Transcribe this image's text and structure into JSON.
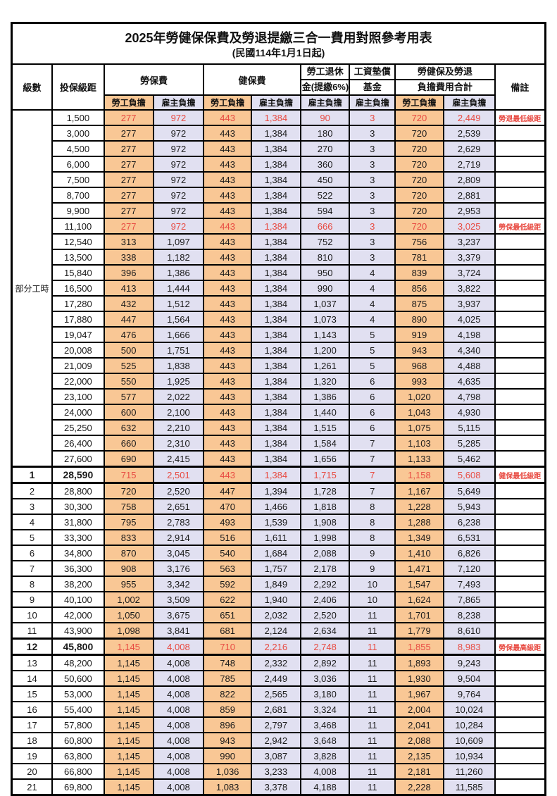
{
  "title": "2025年勞健保保費及勞退提繳三合一費用對照參考用表",
  "subtitle": "(民國114年1月1日起)",
  "colors": {
    "employee_column_bg": "#F9C795",
    "employer_column_bg": "#E1E0F1",
    "red_text": "#E84B42",
    "border": "#000000"
  },
  "header": {
    "level": "級數",
    "bracket": "投保級距",
    "labor_insurance": "勞保費",
    "health_insurance": "健保費",
    "pension_line1": "勞工退休",
    "pension_line2": "金(提繳6%)",
    "wage_fund_line1": "工資墊償",
    "wage_fund_line2": "基金",
    "total_line1": "勞健保及勞退",
    "total_line2": "負擔費用合計",
    "remark": "備註",
    "employee": "勞工負擔",
    "employer": "雇主負擔"
  },
  "part_time_label": "部分工時",
  "part_time_row_count": 23,
  "rows": [
    [
      "",
      "1,500",
      "277",
      "972",
      "443",
      "1,384",
      "90",
      "3",
      "720",
      "2,449",
      "勞退最低級距",
      "red"
    ],
    [
      "",
      "3,000",
      "277",
      "972",
      "443",
      "1,384",
      "180",
      "3",
      "720",
      "2,539",
      "",
      ""
    ],
    [
      "",
      "4,500",
      "277",
      "972",
      "443",
      "1,384",
      "270",
      "3",
      "720",
      "2,629",
      "",
      ""
    ],
    [
      "",
      "6,000",
      "277",
      "972",
      "443",
      "1,384",
      "360",
      "3",
      "720",
      "2,719",
      "",
      ""
    ],
    [
      "",
      "7,500",
      "277",
      "972",
      "443",
      "1,384",
      "450",
      "3",
      "720",
      "2,809",
      "",
      ""
    ],
    [
      "",
      "8,700",
      "277",
      "972",
      "443",
      "1,384",
      "522",
      "3",
      "720",
      "2,881",
      "",
      ""
    ],
    [
      "",
      "9,900",
      "277",
      "972",
      "443",
      "1,384",
      "594",
      "3",
      "720",
      "2,953",
      "",
      ""
    ],
    [
      "",
      "11,100",
      "277",
      "972",
      "443",
      "1,384",
      "666",
      "3",
      "720",
      "3,025",
      "勞保最低級距",
      "red"
    ],
    [
      "",
      "12,540",
      "313",
      "1,097",
      "443",
      "1,384",
      "752",
      "3",
      "756",
      "3,237",
      "",
      ""
    ],
    [
      "",
      "13,500",
      "338",
      "1,182",
      "443",
      "1,384",
      "810",
      "3",
      "781",
      "3,379",
      "",
      ""
    ],
    [
      "",
      "15,840",
      "396",
      "1,386",
      "443",
      "1,384",
      "950",
      "4",
      "839",
      "3,724",
      "",
      ""
    ],
    [
      "",
      "16,500",
      "413",
      "1,444",
      "443",
      "1,384",
      "990",
      "4",
      "856",
      "3,822",
      "",
      ""
    ],
    [
      "",
      "17,280",
      "432",
      "1,512",
      "443",
      "1,384",
      "1,037",
      "4",
      "875",
      "3,937",
      "",
      ""
    ],
    [
      "",
      "17,880",
      "447",
      "1,564",
      "443",
      "1,384",
      "1,073",
      "4",
      "890",
      "4,025",
      "",
      ""
    ],
    [
      "",
      "19,047",
      "476",
      "1,666",
      "443",
      "1,384",
      "1,143",
      "5",
      "919",
      "4,198",
      "",
      ""
    ],
    [
      "",
      "20,008",
      "500",
      "1,751",
      "443",
      "1,384",
      "1,200",
      "5",
      "943",
      "4,340",
      "",
      ""
    ],
    [
      "",
      "21,009",
      "525",
      "1,838",
      "443",
      "1,384",
      "1,261",
      "5",
      "968",
      "4,488",
      "",
      ""
    ],
    [
      "",
      "22,000",
      "550",
      "1,925",
      "443",
      "1,384",
      "1,320",
      "6",
      "993",
      "4,635",
      "",
      ""
    ],
    [
      "",
      "23,100",
      "577",
      "2,022",
      "443",
      "1,384",
      "1,386",
      "6",
      "1,020",
      "4,798",
      "",
      ""
    ],
    [
      "",
      "24,000",
      "600",
      "2,100",
      "443",
      "1,384",
      "1,440",
      "6",
      "1,043",
      "4,930",
      "",
      ""
    ],
    [
      "",
      "25,250",
      "632",
      "2,210",
      "443",
      "1,384",
      "1,515",
      "6",
      "1,075",
      "5,115",
      "",
      ""
    ],
    [
      "",
      "26,400",
      "660",
      "2,310",
      "443",
      "1,384",
      "1,584",
      "7",
      "1,103",
      "5,285",
      "",
      ""
    ],
    [
      "",
      "27,600",
      "690",
      "2,415",
      "443",
      "1,384",
      "1,656",
      "7",
      "1,133",
      "5,462",
      "",
      ""
    ],
    [
      "1",
      "28,590",
      "715",
      "2,501",
      "443",
      "1,384",
      "1,715",
      "7",
      "1,158",
      "5,608",
      "健保最低級距",
      "red bold"
    ],
    [
      "2",
      "28,800",
      "720",
      "2,520",
      "447",
      "1,394",
      "1,728",
      "7",
      "1,167",
      "5,649",
      "",
      ""
    ],
    [
      "3",
      "30,300",
      "758",
      "2,651",
      "470",
      "1,466",
      "1,818",
      "8",
      "1,228",
      "5,943",
      "",
      ""
    ],
    [
      "4",
      "31,800",
      "795",
      "2,783",
      "493",
      "1,539",
      "1,908",
      "8",
      "1,288",
      "6,238",
      "",
      ""
    ],
    [
      "5",
      "33,300",
      "833",
      "2,914",
      "516",
      "1,611",
      "1,998",
      "8",
      "1,349",
      "6,531",
      "",
      ""
    ],
    [
      "6",
      "34,800",
      "870",
      "3,045",
      "540",
      "1,684",
      "2,088",
      "9",
      "1,410",
      "6,826",
      "",
      ""
    ],
    [
      "7",
      "36,300",
      "908",
      "3,176",
      "563",
      "1,757",
      "2,178",
      "9",
      "1,471",
      "7,120",
      "",
      ""
    ],
    [
      "8",
      "38,200",
      "955",
      "3,342",
      "592",
      "1,849",
      "2,292",
      "10",
      "1,547",
      "7,493",
      "",
      ""
    ],
    [
      "9",
      "40,100",
      "1,002",
      "3,509",
      "622",
      "1,940",
      "2,406",
      "10",
      "1,624",
      "7,865",
      "",
      ""
    ],
    [
      "10",
      "42,000",
      "1,050",
      "3,675",
      "651",
      "2,032",
      "2,520",
      "11",
      "1,701",
      "8,238",
      "",
      ""
    ],
    [
      "11",
      "43,900",
      "1,098",
      "3,841",
      "681",
      "2,124",
      "2,634",
      "11",
      "1,779",
      "8,610",
      "",
      ""
    ],
    [
      "12",
      "45,800",
      "1,145",
      "4,008",
      "710",
      "2,216",
      "2,748",
      "11",
      "1,855",
      "8,983",
      "勞保最高級距",
      "red bold"
    ],
    [
      "13",
      "48,200",
      "1,145",
      "4,008",
      "748",
      "2,332",
      "2,892",
      "11",
      "1,893",
      "9,243",
      "",
      ""
    ],
    [
      "14",
      "50,600",
      "1,145",
      "4,008",
      "785",
      "2,449",
      "3,036",
      "11",
      "1,930",
      "9,504",
      "",
      ""
    ],
    [
      "15",
      "53,000",
      "1,145",
      "4,008",
      "822",
      "2,565",
      "3,180",
      "11",
      "1,967",
      "9,764",
      "",
      ""
    ],
    [
      "16",
      "55,400",
      "1,145",
      "4,008",
      "859",
      "2,681",
      "3,324",
      "11",
      "2,004",
      "10,024",
      "",
      ""
    ],
    [
      "17",
      "57,800",
      "1,145",
      "4,008",
      "896",
      "2,797",
      "3,468",
      "11",
      "2,041",
      "10,284",
      "",
      ""
    ],
    [
      "18",
      "60,800",
      "1,145",
      "4,008",
      "943",
      "2,942",
      "3,648",
      "11",
      "2,088",
      "10,609",
      "",
      ""
    ],
    [
      "19",
      "63,800",
      "1,145",
      "4,008",
      "990",
      "3,087",
      "3,828",
      "11",
      "2,135",
      "10,934",
      "",
      ""
    ],
    [
      "20",
      "66,800",
      "1,145",
      "4,008",
      "1,036",
      "3,233",
      "4,008",
      "11",
      "2,181",
      "11,260",
      "",
      ""
    ],
    [
      "21",
      "69,800",
      "1,145",
      "4,008",
      "1,083",
      "3,378",
      "4,188",
      "11",
      "2,228",
      "11,585",
      "",
      ""
    ]
  ]
}
